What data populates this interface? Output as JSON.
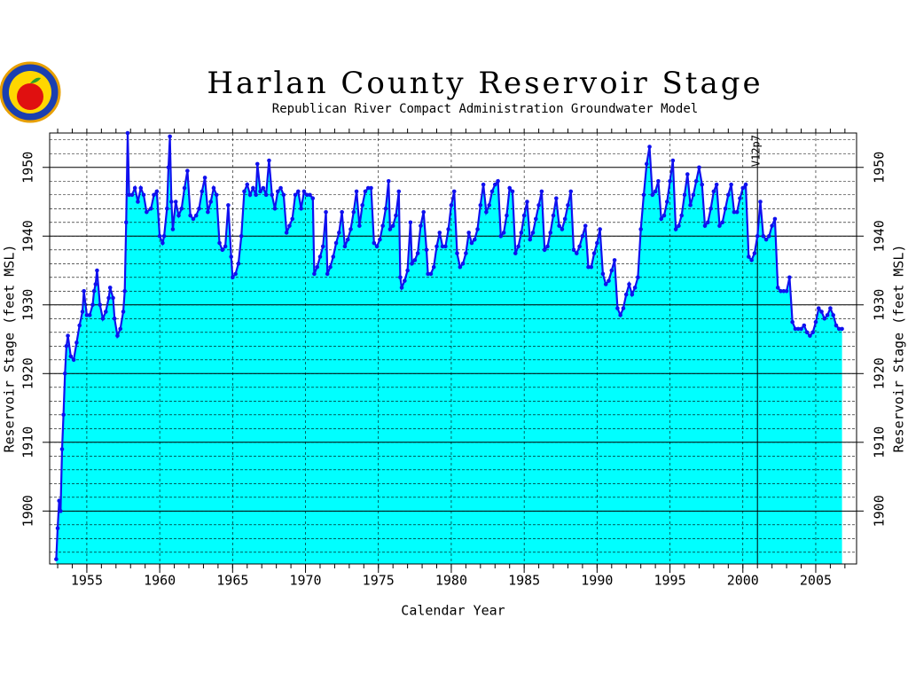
{
  "chart_data": {
    "type": "area",
    "title": "Harlan County Reservoir Stage",
    "subtitle": "Republican River Compact Administration Groundwater Model",
    "x_label": "Calendar Year",
    "y_label": "Reservoir Stage (feet MSL)",
    "annotation": {
      "text": "V12p7",
      "x": 2001
    },
    "xlim": [
      1952.45,
      2007.8
    ],
    "xticks": [
      1955,
      1960,
      1965,
      1970,
      1975,
      1980,
      1985,
      1990,
      1995,
      2000,
      2005
    ],
    "x_minor_step": 1,
    "ylim": [
      1892.3,
      1955
    ],
    "yticks": [
      1900,
      1910,
      1920,
      1930,
      1940,
      1950
    ],
    "y_minor_grid_step": 2,
    "grid": true,
    "right_axis": true,
    "x": [
      1952.9,
      1953.0,
      1953.1,
      1953.2,
      1953.3,
      1953.4,
      1953.5,
      1953.6,
      1953.7,
      1953.9,
      1954.1,
      1954.3,
      1954.5,
      1954.7,
      1954.8,
      1955.0,
      1955.2,
      1955.4,
      1955.5,
      1955.6,
      1955.7,
      1955.9,
      1956.1,
      1956.3,
      1956.5,
      1956.6,
      1956.8,
      1956.9,
      1957.1,
      1957.3,
      1957.5,
      1957.6,
      1957.7,
      1957.8,
      1957.9,
      1958.1,
      1958.3,
      1958.5,
      1958.7,
      1958.9,
      1959.1,
      1959.4,
      1959.6,
      1959.8,
      1960.0,
      1960.2,
      1960.3,
      1960.5,
      1960.6,
      1960.7,
      1960.8,
      1960.9,
      1961.1,
      1961.3,
      1961.5,
      1961.7,
      1961.9,
      1962.1,
      1962.3,
      1962.5,
      1962.7,
      1962.9,
      1963.1,
      1963.3,
      1963.5,
      1963.7,
      1963.9,
      1964.1,
      1964.3,
      1964.5,
      1964.7,
      1964.9,
      1965.0,
      1965.2,
      1965.4,
      1965.6,
      1965.8,
      1966.0,
      1966.2,
      1966.4,
      1966.6,
      1966.7,
      1966.9,
      1967.1,
      1967.3,
      1967.5,
      1967.7,
      1967.9,
      1968.1,
      1968.3,
      1968.5,
      1968.7,
      1968.9,
      1969.1,
      1969.3,
      1969.5,
      1969.7,
      1969.9,
      1970.1,
      1970.3,
      1970.5,
      1970.6,
      1970.8,
      1971.0,
      1971.2,
      1971.4,
      1971.5,
      1971.7,
      1971.9,
      1972.1,
      1972.3,
      1972.5,
      1972.7,
      1972.9,
      1973.1,
      1973.3,
      1973.5,
      1973.7,
      1973.9,
      1974.1,
      1974.3,
      1974.5,
      1974.7,
      1974.9,
      1975.1,
      1975.3,
      1975.5,
      1975.7,
      1975.8,
      1976.0,
      1976.2,
      1976.4,
      1976.5,
      1976.6,
      1976.8,
      1977.0,
      1977.2,
      1977.3,
      1977.5,
      1977.7,
      1977.9,
      1978.1,
      1978.3,
      1978.4,
      1978.6,
      1978.8,
      1979.0,
      1979.2,
      1979.4,
      1979.6,
      1979.8,
      1980.0,
      1980.2,
      1980.4,
      1980.6,
      1980.8,
      1981.0,
      1981.2,
      1981.4,
      1981.6,
      1981.8,
      1982.0,
      1982.2,
      1982.4,
      1982.6,
      1982.8,
      1983.0,
      1983.2,
      1983.4,
      1983.6,
      1983.8,
      1984.0,
      1984.2,
      1984.4,
      1984.6,
      1984.8,
      1985.0,
      1985.2,
      1985.4,
      1985.6,
      1985.8,
      1986.0,
      1986.2,
      1986.4,
      1986.6,
      1986.8,
      1987.0,
      1987.2,
      1987.4,
      1987.6,
      1987.8,
      1988.0,
      1988.2,
      1988.4,
      1988.6,
      1988.8,
      1989.0,
      1989.2,
      1989.4,
      1989.6,
      1989.8,
      1990.0,
      1990.2,
      1990.4,
      1990.6,
      1990.8,
      1991.0,
      1991.2,
      1991.4,
      1991.6,
      1991.8,
      1992.0,
      1992.2,
      1992.4,
      1992.6,
      1992.8,
      1993.0,
      1993.2,
      1993.4,
      1993.6,
      1993.8,
      1994.0,
      1994.2,
      1994.4,
      1994.6,
      1994.8,
      1995.0,
      1995.2,
      1995.4,
      1995.6,
      1995.8,
      1996.0,
      1996.2,
      1996.4,
      1996.6,
      1996.8,
      1997.0,
      1997.2,
      1997.4,
      1997.6,
      1997.8,
      1998.0,
      1998.2,
      1998.4,
      1998.6,
      1998.8,
      1999.0,
      1999.2,
      1999.4,
      1999.6,
      1999.8,
      2000.0,
      2000.2,
      2000.4,
      2000.6,
      2000.8,
      2001.0,
      2001.2,
      2001.4,
      2001.6,
      2001.8,
      2002.0,
      2002.2,
      2002.4,
      2002.6,
      2002.8,
      2003.0,
      2003.2,
      2003.4,
      2003.6,
      2003.8,
      2004.0,
      2004.2,
      2004.4,
      2004.6,
      2004.8,
      2005.0,
      2005.2,
      2005.4,
      2005.6,
      2005.8,
      2006.0,
      2006.2,
      2006.4,
      2006.6,
      2006.8
    ],
    "series": [
      {
        "name": "Reservoir Stage",
        "color": "#1010ee",
        "fill": "#00ffff",
        "values": [
          1893,
          1897.5,
          1901.5,
          1900,
          1909,
          1914,
          1920,
          1924,
          1925.5,
          1922.5,
          1922,
          1924.5,
          1927,
          1929,
          1932,
          1928.5,
          1928.5,
          1930,
          1932,
          1933,
          1935,
          1930,
          1928,
          1929,
          1931,
          1932.5,
          1931,
          1928,
          1925.5,
          1926.5,
          1929,
          1932,
          1942,
          1955,
          1946,
          1946,
          1947,
          1945,
          1947,
          1946,
          1943.5,
          1944,
          1946,
          1946.5,
          1940,
          1939,
          1940,
          1944,
          1950,
          1954.5,
          1945,
          1941,
          1945,
          1943,
          1944,
          1947,
          1949.5,
          1943,
          1942.5,
          1943,
          1944,
          1946.5,
          1948.5,
          1943.5,
          1945,
          1947,
          1946,
          1939,
          1938,
          1938.5,
          1944.5,
          1937,
          1934,
          1934.5,
          1936,
          1940,
          1946.5,
          1947.5,
          1946,
          1947,
          1946,
          1950.5,
          1946.5,
          1947,
          1946,
          1951,
          1946,
          1944,
          1946.5,
          1947,
          1946,
          1940.5,
          1941.5,
          1942.5,
          1946,
          1946.5,
          1944,
          1946.5,
          1946,
          1946,
          1945.5,
          1934.5,
          1935.5,
          1937,
          1938.5,
          1943.5,
          1934.5,
          1935.5,
          1937,
          1939,
          1940.5,
          1943.5,
          1938.5,
          1939.5,
          1941,
          1943.5,
          1946.5,
          1941.5,
          1944.5,
          1946.5,
          1947,
          1947,
          1939,
          1938.5,
          1939.5,
          1941.5,
          1944,
          1948,
          1941,
          1941.5,
          1943,
          1946.5,
          1934,
          1932.5,
          1933.5,
          1935,
          1942,
          1936,
          1936.5,
          1937.5,
          1941.5,
          1943.5,
          1938,
          1934.5,
          1934.5,
          1935.5,
          1938.5,
          1940.5,
          1938.5,
          1938.5,
          1941,
          1944.5,
          1946.5,
          1937.5,
          1935.5,
          1936,
          1937.5,
          1940.5,
          1939,
          1939.5,
          1941,
          1944.5,
          1947.5,
          1943.5,
          1944.5,
          1946.5,
          1947.5,
          1948,
          1940,
          1940.5,
          1943,
          1947,
          1946.5,
          1937.5,
          1938.5,
          1940.5,
          1943,
          1945,
          1939.5,
          1940.5,
          1942.5,
          1944.5,
          1946.5,
          1938,
          1938.5,
          1940.5,
          1943,
          1945.5,
          1941.5,
          1941,
          1942.5,
          1944.5,
          1946.5,
          1938,
          1937.5,
          1938.5,
          1940,
          1941.5,
          1935.5,
          1935.5,
          1937.5,
          1939,
          1941,
          1934.5,
          1933,
          1933.5,
          1935,
          1936.5,
          1929.5,
          1928.5,
          1929.5,
          1931.5,
          1933,
          1931.5,
          1932.5,
          1934,
          1941,
          1946,
          1950.5,
          1953,
          1946,
          1946.5,
          1948,
          1942.5,
          1943,
          1945,
          1948,
          1951,
          1941,
          1941.5,
          1943,
          1946,
          1949,
          1944.5,
          1946,
          1948,
          1950,
          1947.5,
          1941.5,
          1942,
          1944,
          1946.5,
          1947.5,
          1941.5,
          1942,
          1944,
          1946,
          1947.5,
          1943.5,
          1943.5,
          1945.5,
          1947,
          1947.5,
          1937,
          1936.5,
          1937.5,
          1940,
          1945,
          1940,
          1939.5,
          1940,
          1941.5,
          1942.5,
          1932.5,
          1932,
          1932,
          1932,
          1934,
          1927.5,
          1926.5,
          1926.5,
          1926.5,
          1927,
          1926,
          1925.5,
          1926,
          1927.5,
          1929.5,
          1929,
          1928,
          1928.5,
          1929.5,
          1928.5,
          1927,
          1926.5,
          1926.5
        ]
      }
    ]
  }
}
